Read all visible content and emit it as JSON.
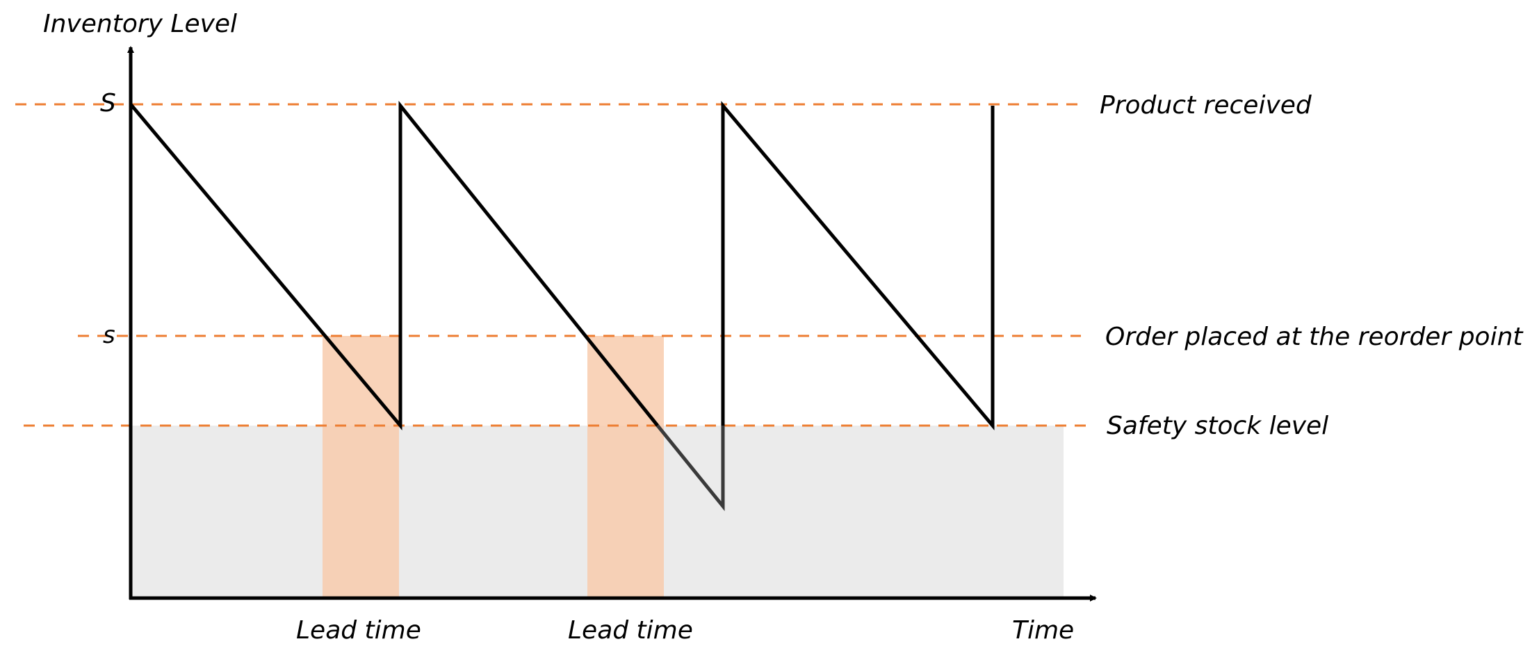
{
  "axes": {
    "y_label": "Inventory Level",
    "x_label": "Time",
    "y_ticks": {
      "max_level": "S",
      "reorder_point": "s"
    }
  },
  "reference_lines": {
    "max_level": "Product received",
    "reorder_point": "Order placed at the reorder point",
    "safety_stock": "Safety stock level"
  },
  "lead_time_labels": [
    "Lead time",
    "Lead time"
  ],
  "colors": {
    "reference_line": "#ED7D31",
    "lead_time_band": "#F8CBAD",
    "safety_stock_area": "#EBEBEB",
    "stock_line": "#000000"
  }
}
